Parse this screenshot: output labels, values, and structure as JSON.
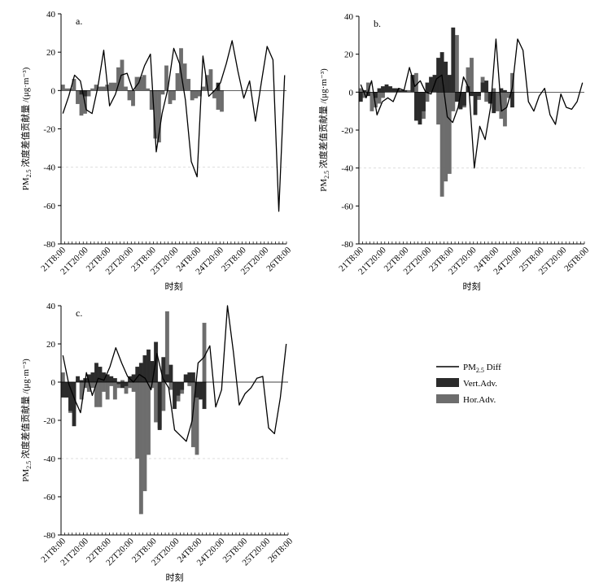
{
  "legend": {
    "items": [
      {
        "label": "PM2.5 Diff",
        "label_base": "PM",
        "label_sub": "2.5",
        "label_rest": " Diff",
        "kind": "line",
        "color": "#000000"
      },
      {
        "label": "Vert.Adv.",
        "kind": "box",
        "color": "#2b2b2b"
      },
      {
        "label": "Hor.Adv.",
        "kind": "box",
        "color": "#6d6d6d"
      }
    ]
  },
  "chart_data": [
    {
      "type": "bar+line",
      "panel_label": "a.",
      "ylabel": "PM2.5 浓度差值贡献量 /(μg·m⁻³)",
      "xlabel": "时刻",
      "ylim": [
        -80,
        40
      ],
      "yticks": [
        -80,
        -60,
        -40,
        -20,
        0,
        20,
        40
      ],
      "x_tick_labels": [
        "21T8:00",
        "21T20:00",
        "22T8:00",
        "22T20:00",
        "23T8:00",
        "23T20:00",
        "24T8:00",
        "24T20:00",
        "25T8:00",
        "25T20:00",
        "26T8:00"
      ],
      "n_steps": 61,
      "series": [
        {
          "name": "Hor.Adv.",
          "kind": "bar",
          "color": "#6d6d6d",
          "values": [
            3,
            1,
            1,
            6,
            -7,
            -13,
            -12,
            -3,
            1,
            3,
            2,
            2,
            3,
            4,
            4,
            12,
            16,
            2,
            -5,
            -8,
            7,
            7,
            8,
            1,
            -10,
            -25,
            -27,
            -2,
            13,
            -7,
            -5,
            9,
            22,
            14,
            6,
            -5,
            -4,
            -3,
            2,
            8,
            11,
            -4,
            -10,
            -11,
            0,
            0,
            0,
            0,
            0,
            0,
            0,
            0,
            0,
            0,
            0,
            0,
            0,
            0,
            0,
            0,
            0
          ]
        },
        {
          "name": "Vert.Adv.",
          "kind": "bar",
          "color": "#2b2b2b",
          "values": [
            0,
            0,
            0,
            0,
            0,
            -2,
            -3,
            0,
            0,
            0,
            0,
            0,
            0,
            0,
            0,
            0,
            0,
            0,
            0,
            0,
            0,
            0,
            0,
            0,
            0,
            0,
            0,
            0,
            0,
            0,
            0,
            0,
            0,
            0,
            0,
            0,
            0,
            0,
            0,
            0,
            0,
            0,
            4,
            0,
            0,
            0,
            0,
            0,
            0,
            0,
            0,
            0,
            0,
            0,
            0,
            0,
            0,
            0,
            0,
            0,
            0
          ]
        },
        {
          "name": "PM2.5 Diff",
          "kind": "line",
          "color": "#000000",
          "values": [
            -12,
            -3,
            8,
            5,
            -10,
            -12,
            2,
            21,
            -8,
            -2,
            8,
            9,
            0,
            4,
            13,
            19,
            -32,
            -12,
            1,
            22,
            14,
            -5,
            -37,
            -45,
            18,
            -3,
            0,
            4,
            14,
            26,
            10,
            -4,
            5,
            -16,
            4,
            23,
            16,
            -63,
            8,
            0,
            0,
            0,
            0,
            0,
            0,
            0,
            0,
            0,
            0,
            0,
            0,
            0,
            0,
            0,
            0,
            0,
            0,
            0,
            0,
            0,
            0
          ]
        }
      ]
    },
    {
      "type": "bar+line",
      "panel_label": "b.",
      "ylabel": "PM2.5 浓度差值贡献量 /(μg·m⁻³)",
      "xlabel": "时刻",
      "ylim": [
        -80,
        40
      ],
      "yticks": [
        -80,
        -60,
        -40,
        -20,
        0,
        20,
        40
      ],
      "x_tick_labels": [
        "21T8:00",
        "21T20:00",
        "22T8:00",
        "22T20:00",
        "23T8:00",
        "23T20:00",
        "24T8:00",
        "24T20:00",
        "25T8:00",
        "25T20:00",
        "26T8:00"
      ],
      "n_steps": 61,
      "series": [
        {
          "name": "Hor.Adv.",
          "kind": "bar",
          "color": "#6d6d6d",
          "values": [
            2,
            -3,
            5,
            -10,
            -8,
            -6,
            -3,
            1,
            2,
            2,
            1,
            1,
            0,
            1,
            8,
            10,
            -10,
            -14,
            -5,
            3,
            6,
            -17,
            -55,
            -47,
            -43,
            -10,
            30,
            -8,
            -8,
            13,
            18,
            -1,
            -4,
            8,
            -5,
            -4,
            2,
            -10,
            -14,
            -18,
            -3,
            10,
            0,
            0,
            0,
            0,
            0,
            0,
            0,
            0,
            0,
            0,
            0,
            0,
            0,
            0,
            0,
            0,
            0,
            0,
            0
          ]
        },
        {
          "name": "Vert.Adv.",
          "kind": "bar",
          "color": "#2b2b2b",
          "values": [
            -5,
            1,
            -2,
            0,
            -3,
            2,
            3,
            4,
            3,
            2,
            2,
            1,
            1,
            0,
            9,
            -15,
            -17,
            -10,
            5,
            8,
            9,
            18,
            21,
            16,
            9,
            34,
            -5,
            -9,
            -7,
            3,
            -2,
            -12,
            -2,
            5,
            6,
            -6,
            -11,
            0,
            2,
            1,
            0,
            -8,
            0,
            0,
            0,
            0,
            0,
            0,
            0,
            0,
            0,
            0,
            0,
            0,
            0,
            0,
            0,
            0,
            0,
            0,
            0
          ]
        },
        {
          "name": "PM2.5 Diff",
          "kind": "line",
          "color": "#000000",
          "values": [
            4,
            -3,
            6,
            -12,
            -5,
            -3,
            -5,
            2,
            1,
            13,
            3,
            6,
            0,
            -1,
            7,
            9,
            -13,
            -16,
            -8,
            8,
            2,
            -40,
            -18,
            -25,
            -8,
            28,
            -10,
            -8,
            2,
            28,
            22,
            -5,
            -10,
            -2,
            2,
            -12,
            -17,
            -1,
            -8,
            -9,
            -5,
            5,
            0,
            0,
            0,
            0,
            0,
            0,
            0,
            0,
            0,
            0,
            0,
            0,
            0,
            0,
            0,
            0,
            0,
            0,
            0
          ]
        }
      ]
    },
    {
      "type": "bar+line",
      "panel_label": "c.",
      "ylabel": "PM2.5 浓度差值贡献量 /(μg·m⁻³)",
      "xlabel": "时刻",
      "ylim": [
        -80,
        40
      ],
      "yticks": [
        -80,
        -60,
        -40,
        -20,
        0,
        20,
        40
      ],
      "x_tick_labels": [
        "21T8:00",
        "21T20:00",
        "22T8:00",
        "22T20:00",
        "23T8:00",
        "23T20:00",
        "24T8:00",
        "24T20:00",
        "25T8:00",
        "25T20:00",
        "26T8:00"
      ],
      "n_steps": 61,
      "series": [
        {
          "name": "Hor.Adv.",
          "kind": "bar",
          "color": "#6d6d6d",
          "values": [
            5,
            -8,
            -16,
            -14,
            1,
            -9,
            -3,
            -5,
            -3,
            -13,
            -13,
            -5,
            -9,
            -2,
            -9,
            -3,
            1,
            -6,
            -3,
            -5,
            -40,
            -69,
            -57,
            -38,
            -3,
            -21,
            -24,
            -15,
            37,
            -4,
            -8,
            -10,
            -6,
            2,
            -2,
            -34,
            -38,
            -8,
            31,
            0,
            0,
            0,
            0,
            0,
            0,
            0,
            0,
            0,
            0,
            0,
            0,
            0,
            0,
            0,
            0,
            0,
            0,
            0,
            0,
            0,
            0
          ]
        },
        {
          "name": "Vert.Adv.",
          "kind": "bar",
          "color": "#2b2b2b",
          "values": [
            -8,
            -8,
            -15,
            -23,
            3,
            1,
            2,
            4,
            5,
            10,
            8,
            5,
            4,
            3,
            2,
            -1,
            -3,
            -2,
            3,
            4,
            8,
            10,
            14,
            17,
            11,
            21,
            -25,
            13,
            4,
            9,
            -14,
            -7,
            -4,
            4,
            5,
            5,
            -8,
            -9,
            -14,
            0,
            0,
            0,
            0,
            0,
            0,
            0,
            0,
            0,
            0,
            0,
            0,
            0,
            0,
            0,
            0,
            0,
            0,
            0,
            0,
            0,
            0
          ]
        },
        {
          "name": "PM2.5 Diff",
          "kind": "line",
          "color": "#000000",
          "values": [
            14,
            -1,
            -9,
            -16,
            5,
            -7,
            2,
            1,
            8,
            18,
            10,
            3,
            0,
            4,
            2,
            -4,
            15,
            2,
            -3,
            -25,
            -28,
            -31,
            -20,
            10,
            13,
            19,
            -13,
            -4,
            40,
            16,
            -12,
            -6,
            -3,
            2,
            3,
            -24,
            -27,
            -8,
            20,
            0,
            0,
            0,
            0,
            0,
            0,
            0,
            0,
            0,
            0,
            0,
            0,
            0,
            0,
            0,
            0,
            0,
            0,
            0,
            0,
            0,
            0
          ]
        }
      ]
    }
  ]
}
